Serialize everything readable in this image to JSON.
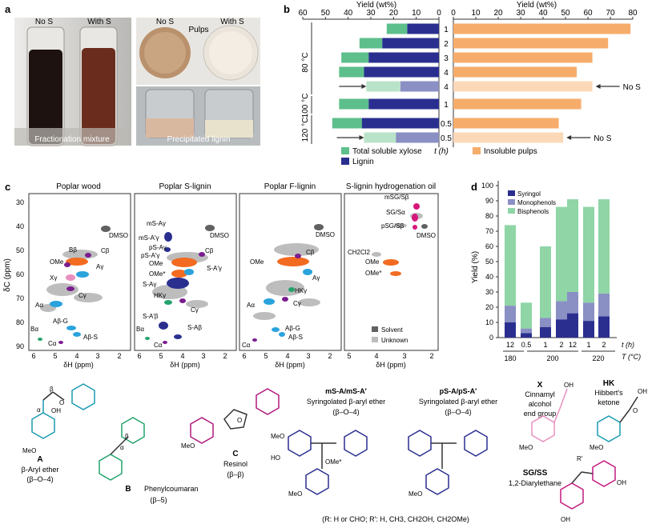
{
  "panels": {
    "a": {
      "letter": "a",
      "tube_labels": [
        "No S",
        "With S"
      ],
      "pulp_labels": [
        "No S",
        "With S"
      ],
      "pulps_title": "Pulps",
      "fractionation_caption": "Fractionation mixture",
      "lignin_caption": "Precipitated lignin"
    },
    "b": {
      "letter": "b"
    },
    "c": {
      "letter": "c",
      "titles": [
        "Poplar wood",
        "Poplar S-lignin",
        "Poplar F-lignin",
        "S-lignin hydrogenation oil"
      ],
      "ylabel": "δC (ppm)",
      "xlabel": "δH (ppm)",
      "yticks": [
        "30",
        "40",
        "50",
        "60",
        "70",
        "80",
        "90"
      ],
      "xticks_a": [
        "6",
        "5",
        "4",
        "3",
        "2"
      ],
      "xticks_b": [
        "6",
        "5",
        "4",
        "3",
        "2"
      ],
      "xticks_c": [
        "6",
        "5",
        "4",
        "3",
        "2"
      ],
      "xticks_d": [
        "5",
        "4",
        "3",
        "2"
      ],
      "labels_wood": [
        "DMSO",
        "Bβ",
        "Cβ",
        "OMe",
        "Aγ",
        "Xγ",
        "Cγ",
        "Aα",
        "Aβ-G",
        "Aβ-S",
        "Bα",
        "Cα"
      ],
      "labels_s": [
        "mS-Aγ",
        "mS-A'γ",
        "pS-Aγ",
        "pS-A'γ",
        "OMe",
        "OMe*",
        "S-Aγ",
        "S-A'γ",
        "HKγ",
        "Cβ",
        "Cγ",
        "S-A'β",
        "S-Aβ",
        "Bα",
        "Cα",
        "DMSO"
      ],
      "labels_f": [
        "DMSO",
        "OMe",
        "Cβ",
        "Aγ",
        "HKγ",
        "Aα",
        "Cγ",
        "Aβ-G",
        "Aβ-S",
        "Cα"
      ],
      "labels_oil": [
        "mSG/Sβ",
        "SG/Sα",
        "pSG/Sβ",
        "DMSO",
        "CH2Cl2",
        "OMe",
        "OMe*"
      ],
      "legend": [
        "Solvent",
        "Unknown"
      ]
    },
    "d": {
      "letter": "d"
    }
  },
  "chart_data": [
    {
      "type": "bar",
      "title": "",
      "xlabel": "t (h)",
      "left_axis_label": "Yield (wt%)",
      "right_axis_label": "Yield (wt%)",
      "xlim_left": [
        60,
        0
      ],
      "xticks_left": [
        60,
        50,
        40,
        30,
        20,
        10,
        0
      ],
      "xlim_right": [
        0,
        80
      ],
      "xticks_right": [
        0,
        10,
        20,
        30,
        40,
        50,
        60,
        70,
        80
      ],
      "rows": [
        {
          "temp": "80 °C",
          "t": "1",
          "lignin": 14,
          "xylose": 9,
          "pulp": 79,
          "note": ""
        },
        {
          "temp": "80 °C",
          "t": "2",
          "lignin": 25,
          "xylose": 10,
          "pulp": 69,
          "note": ""
        },
        {
          "temp": "80 °C",
          "t": "3",
          "lignin": 31,
          "xylose": 12,
          "pulp": 62,
          "note": ""
        },
        {
          "temp": "80 °C",
          "t": "4",
          "lignin": 33,
          "xylose": 11,
          "pulp": 55,
          "note": ""
        },
        {
          "temp": "80 °C",
          "t": "4",
          "lignin": 17,
          "xylose": 15,
          "pulp": 62,
          "note": "No S"
        },
        {
          "temp": "100 °C",
          "t": "1",
          "lignin": 31,
          "xylose": 13,
          "pulp": 57,
          "note": ""
        },
        {
          "temp": "120 °C",
          "t": "0.5",
          "lignin": 34,
          "xylose": 13,
          "pulp": 47,
          "note": ""
        },
        {
          "temp": "120 °C",
          "t": "0.5",
          "lignin": 19,
          "xylose": 14,
          "pulp": 49,
          "note": "No S"
        }
      ],
      "legend": [
        "Total soluble xylose",
        "Lignin",
        "t (h)",
        "Insoluble pulps"
      ],
      "colors": {
        "xylose": "#5dbf8b",
        "lignin": "#2a2f8f",
        "pulp": "#f6ad6b",
        "xylose_nos": "#b9e3c8",
        "lignin_nos": "#8a8fc4",
        "pulp_nos": "#fbd9b8"
      }
    },
    {
      "type": "bar",
      "stacked": true,
      "title": "",
      "xlabel": "t (h)",
      "x2label": "T (°C)",
      "ylabel": "Yield (%)",
      "ylim": [
        0,
        100
      ],
      "yticks": [
        0,
        10,
        20,
        30,
        40,
        50,
        60,
        70,
        80,
        90,
        100
      ],
      "categories": [
        "12",
        "0.5",
        "1",
        "2",
        "12",
        "1",
        "2"
      ],
      "temperatures": [
        "180",
        "200",
        "220"
      ],
      "series": [
        {
          "name": "Syringol",
          "values": [
            10,
            3,
            7,
            12,
            16,
            11,
            14
          ],
          "color": "#2a2f8f"
        },
        {
          "name": "Monophenols",
          "values": [
            11,
            3,
            6,
            12,
            14,
            12,
            15
          ],
          "color": "#8a8fc4"
        },
        {
          "name": "Bisphenols",
          "values": [
            53,
            17,
            47,
            62,
            61,
            63,
            62
          ],
          "color": "#8fd5a6"
        }
      ]
    }
  ],
  "structures": {
    "A": {
      "letter": "A",
      "name": "β-Aryl ether",
      "link": "(β–O–4)"
    },
    "B": {
      "letter": "B",
      "name": "Phenylcoumaran",
      "link": "(β–5)"
    },
    "C": {
      "letter": "C",
      "name": "Resinol",
      "link": "(β–β)"
    },
    "mSA": {
      "title": "mS-A/mS-A′",
      "name": "Syringolated β-aryl ether",
      "link": "(β–O–4)"
    },
    "pSA": {
      "title": "pS-A/pS-A′",
      "name": "Syringolated β-aryl ether",
      "link": "(β–O–4)"
    },
    "X": {
      "letter": "X",
      "name1": "Cinnamyl",
      "name2": "alcohol",
      "name3": "end group"
    },
    "HK": {
      "letter": "HK",
      "name1": "Hibbert's",
      "name2": "ketone"
    },
    "SG": {
      "letter": "SG/SS",
      "name": "1,2-Diarylethane"
    },
    "note": "(R: H or CHO; R′: H, CH3, CH2OH, CH2OMe)"
  }
}
